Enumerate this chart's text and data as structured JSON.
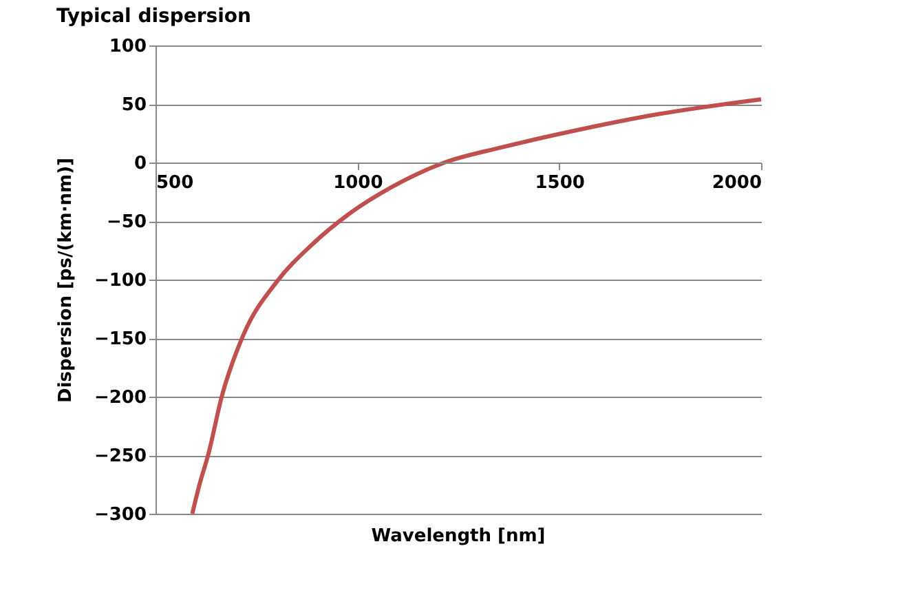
{
  "chart_data": {
    "type": "line",
    "title": "Typical dispersion",
    "xlabel": "Wavelength [nm]",
    "ylabel": "Dispersion [ps/(km·nm)]",
    "series": [
      {
        "color": "#c0504d",
        "x": [
          591,
          609,
          631,
          664,
          718,
          800,
          888,
          975,
          1085,
          1216,
          1358,
          1522,
          1740,
          2000
        ],
        "values": [
          -300,
          -275,
          -249,
          -200,
          -147,
          -102,
          -70,
          -45,
          -21,
          0,
          13,
          26,
          41,
          54
        ]
      }
    ],
    "xlim": [
      500,
      2000
    ],
    "xticks": [
      500,
      1000,
      1500,
      2000
    ],
    "ylim": [
      -300,
      100
    ],
    "yticks": [
      -300,
      -250,
      -200,
      -150,
      -100,
      -50,
      0,
      50,
      100
    ],
    "grid": "y",
    "marker": "none",
    "line_style": "solid"
  }
}
